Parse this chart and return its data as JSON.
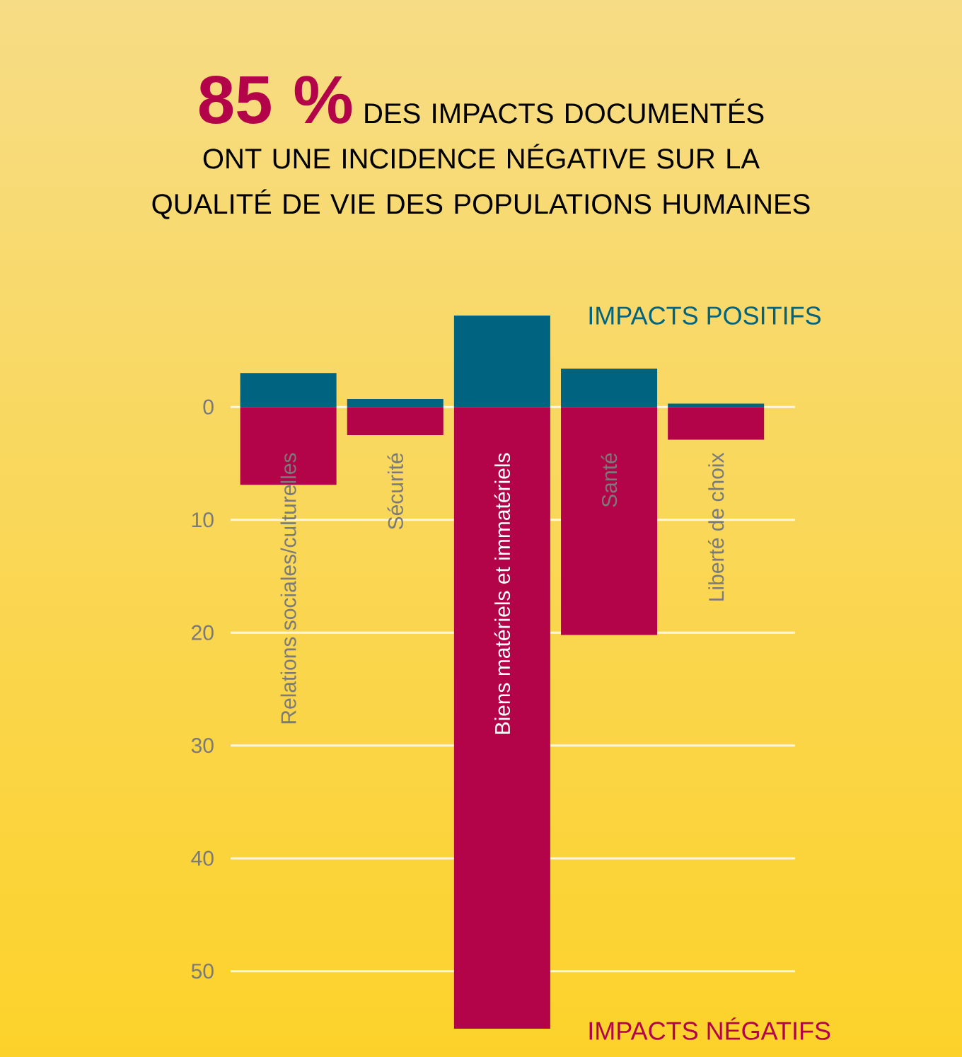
{
  "chart_data": {
    "type": "bar",
    "title": "85 %",
    "subtitle": "DES IMPACTS DOCUMENTÉS ONT UNE INCIDENCE NÉGATIVE SUR LA QUALITÉ DE VIE DES POPULATIONS HUMAINES",
    "categories": [
      "Relations sociales/culturelles",
      "Sécurité",
      "Biens matériels et immatériels",
      "Santé",
      "Liberté de choix"
    ],
    "series": [
      {
        "name": "IMPACTS POSITIFS",
        "color": "#00637f",
        "values": [
          -3.0,
          -0.7,
          -8.1,
          -3.4,
          -0.3
        ]
      },
      {
        "name": "IMPACTS NÉGATIFS",
        "color": "#b3044a",
        "values": [
          6.9,
          2.5,
          55.1,
          20.2,
          2.9
        ]
      }
    ],
    "stacked": true,
    "ylim": [
      55.1,
      -8.1
    ],
    "yticks": [
      0,
      10,
      20,
      30,
      40,
      50
    ],
    "grid": "y",
    "legend": false
  }
}
